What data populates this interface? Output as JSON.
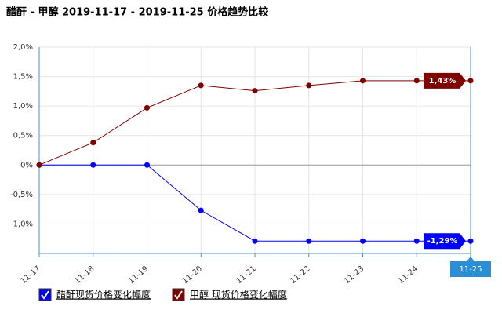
{
  "chart_data": {
    "type": "line",
    "title": "醋酐 - 甲醇 2019-11-17 - 2019-11-25 价格趋势比较",
    "categories": [
      "11-17",
      "11-18",
      "11-19",
      "11-20",
      "11-21",
      "11-22",
      "11-23",
      "11-24",
      "11-25"
    ],
    "series": [
      {
        "name": "醋酐现货价格变化幅度",
        "color": "#0000ff",
        "values": [
          0,
          0,
          0,
          -0.77,
          -1.29,
          -1.29,
          -1.29,
          -1.29,
          -1.29
        ],
        "value_labels": [
          null,
          null,
          null,
          null,
          null,
          null,
          null,
          null,
          "-1,29%"
        ]
      },
      {
        "name": "甲醇 现货价格变化幅度",
        "color": "#800000",
        "values": [
          0,
          0.38,
          0.97,
          1.35,
          1.26,
          1.35,
          1.43,
          1.43,
          1.43
        ],
        "value_labels": [
          null,
          null,
          null,
          null,
          null,
          null,
          null,
          null,
          "1,43%"
        ]
      }
    ],
    "ylim": [
      -1.5,
      2.0
    ],
    "yticks": [
      {
        "value": 2.0,
        "label": "2,0%"
      },
      {
        "value": 1.5,
        "label": "1,5%"
      },
      {
        "value": 1.0,
        "label": "1,0%"
      },
      {
        "value": 0.5,
        "label": "0,5%"
      },
      {
        "value": 0,
        "label": "0%"
      },
      {
        "value": -0.5,
        "label": "-0,5%"
      },
      {
        "value": -1.0,
        "label": "-1,0%"
      }
    ],
    "grid": true
  }
}
